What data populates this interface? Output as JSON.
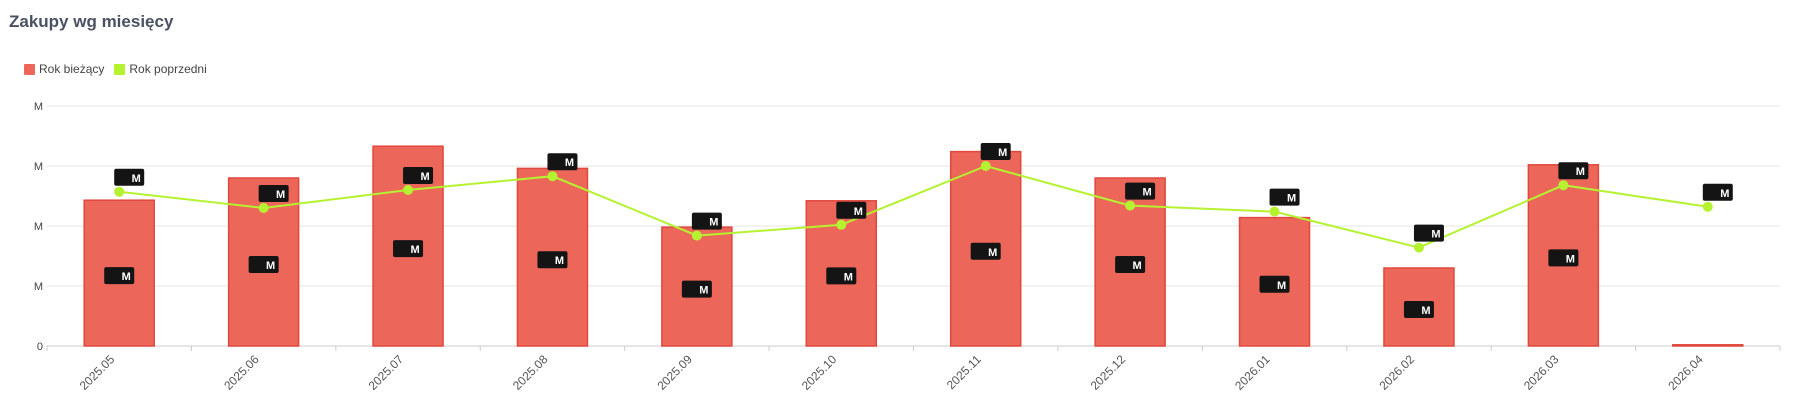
{
  "page": {
    "title": "Zakupy wg miesięcy"
  },
  "chart_data": {
    "type": "bar",
    "title": "Zakupy wg miesięcy",
    "categories": [
      "2025.05",
      "2025.06",
      "2025.07",
      "2025.08",
      "2025.09",
      "2025.10",
      "2025.11",
      "2025.12",
      "2026.01",
      "2026.02",
      "2026.03",
      "2026.04"
    ],
    "ylim": [
      0,
      4
    ],
    "y_ticks": [
      "0",
      "M",
      "M",
      "M",
      "M"
    ],
    "grid": true,
    "legend_position": "top-left",
    "series": [
      {
        "name": "Rok bieżący",
        "type": "bar",
        "color": "#ec665a",
        "values": [
          2.43,
          2.8,
          3.33,
          2.96,
          1.98,
          2.42,
          3.24,
          2.8,
          2.14,
          1.3,
          3.02,
          0.02
        ],
        "data_labels": [
          "M",
          "M",
          "M",
          "M",
          "M",
          "M",
          "M",
          "M",
          "M",
          "M",
          "M",
          ""
        ]
      },
      {
        "name": "Rok poprzedni",
        "type": "line",
        "color": "#b5f230",
        "values": [
          2.57,
          2.3,
          2.6,
          2.83,
          1.84,
          2.02,
          3.0,
          2.34,
          2.24,
          1.64,
          2.68,
          2.32
        ],
        "data_labels": [
          "M",
          "M",
          "M",
          "M",
          "M",
          "M",
          "M",
          "M",
          "M",
          "M",
          "M",
          "M"
        ]
      }
    ]
  }
}
